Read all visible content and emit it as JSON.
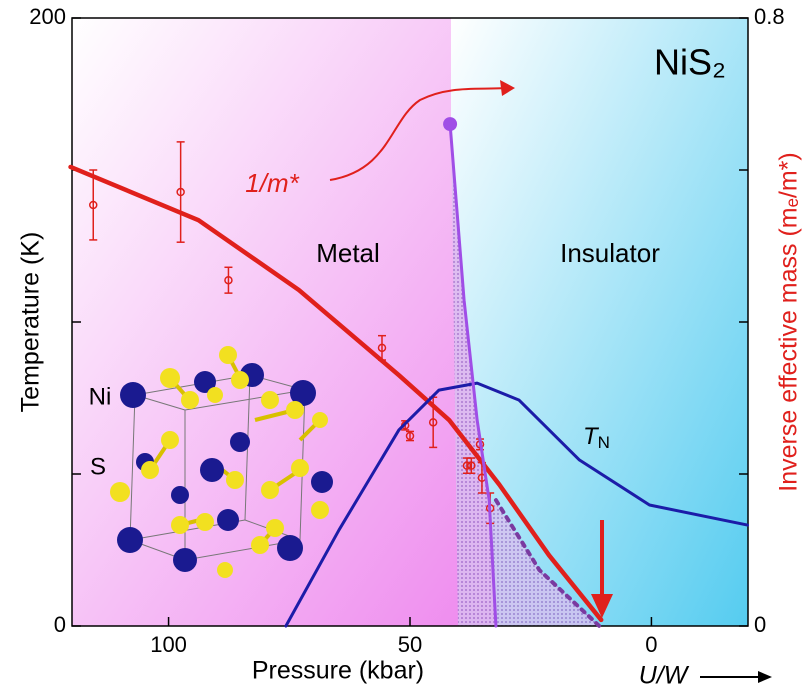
{
  "chart_data": {
    "type": "phase-diagram",
    "x_label": "Pressure (kbar)",
    "y_label": "Temperature (K)",
    "y2_label": "Inverse effective mass (mₑ/m*)",
    "x2_label": "U/W",
    "xlim": [
      120,
      -20
    ],
    "xticks": [
      100,
      50,
      0
    ],
    "ylim": [
      0,
      200
    ],
    "yticks": [
      0,
      200
    ],
    "yminor": [
      50,
      100,
      150
    ],
    "y2lim": [
      0,
      0.8
    ],
    "y2ticks": [
      0,
      0.8
    ],
    "y2minor": [
      0.2,
      0.4,
      0.6
    ],
    "annotations": [
      "NiS₂",
      "Metal",
      "Insulator",
      "1/m*",
      "Ni",
      "S"
    ],
    "tn_label": {
      "main": "T",
      "sub": "N"
    },
    "series": [
      {
        "style": "points",
        "axis": "y2",
        "color": "#e0201c",
        "x": [
          115.6,
          97.5,
          87.6,
          55.8,
          51.0,
          50.0,
          45.2,
          38.2,
          37.3,
          35.5,
          35.1,
          33.4
        ],
        "values": [
          0.554,
          0.571,
          0.455,
          0.366,
          0.264,
          0.25,
          0.268,
          0.211,
          0.211,
          0.239,
          0.195,
          0.155
        ],
        "errors": [
          0.046,
          0.066,
          0.017,
          0.016,
          0.006,
          0.006,
          0.033,
          0.01,
          0.01,
          0.007,
          0.02,
          0.02
        ]
      },
      {
        "style": "line",
        "axis": "y2",
        "color": "#e0201c",
        "x": [
          120.3,
          93.8,
          73.0,
          52.3,
          41.9,
          31.5,
          21.2,
          10.4
        ],
        "values": [
          0.604,
          0.534,
          0.442,
          0.33,
          0.271,
          0.186,
          0.093,
          0.008
        ]
      },
      {
        "style": "line",
        "color": "#1c1ca8",
        "x": [
          75.7,
          64.7,
          52.3,
          44.0,
          36.1,
          27.4,
          14.9,
          0.4,
          -19.9
        ],
        "values": [
          0,
          31.6,
          64.5,
          77.6,
          79.9,
          74.3,
          54.6,
          39.8,
          33.2
        ]
      },
      {
        "style": "line",
        "color": "#a04ee6",
        "x": [
          41.7,
          38.8,
          36.1,
          33.6,
          32.2
        ],
        "values": [
          165.1,
          107.2,
          67.8,
          41.4,
          0
        ]
      },
      {
        "style": "dotted",
        "color": "#7a3aa0",
        "x": [
          32.2,
          23.2,
          10.8
        ],
        "values": [
          41.4,
          18.4,
          0
        ]
      }
    ]
  }
}
